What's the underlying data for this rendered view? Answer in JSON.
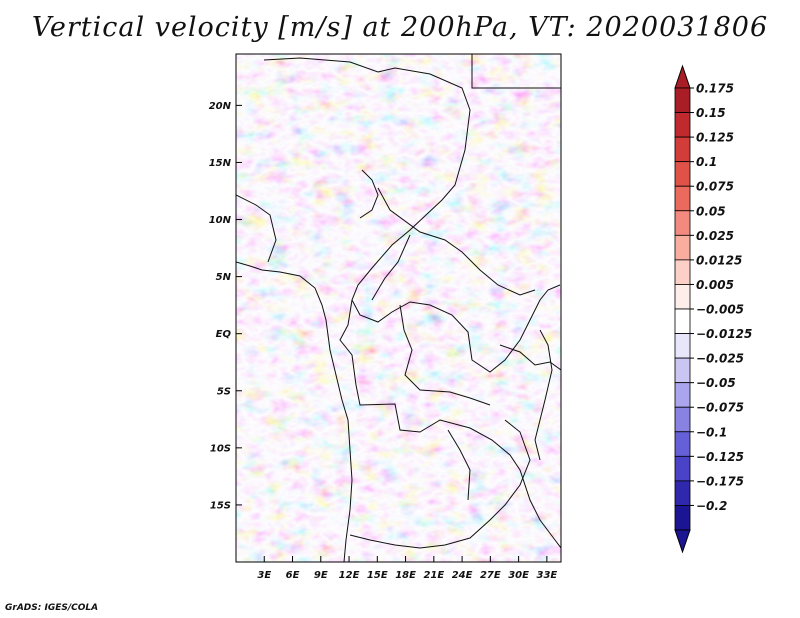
{
  "title": "Vertical velocity [m/s] at 200hPa, VT: 2020031806",
  "credit": "GrADS: IGES/COLA",
  "lat_labels": [
    "20N",
    "15N",
    "10N",
    "5N",
    "EQ",
    "5S",
    "10S",
    "15S"
  ],
  "lat_values": [
    20,
    15,
    10,
    5,
    0,
    -5,
    -10,
    -15
  ],
  "lon_labels": [
    "3E",
    "6E",
    "9E",
    "12E",
    "15E",
    "18E",
    "21E",
    "24E",
    "27E",
    "30E",
    "33E"
  ],
  "lon_values": [
    3,
    6,
    9,
    12,
    15,
    18,
    21,
    24,
    27,
    30,
    33
  ],
  "extent": {
    "lon_min": 0,
    "lon_max": 34.5,
    "lat_min": -20,
    "lat_max": 24.5
  },
  "colorbar": {
    "labels": [
      "0.175",
      "0.15",
      "0.125",
      "0.1",
      "0.075",
      "0.05",
      "0.025",
      "0.0125",
      "0.005",
      "−0.005",
      "−0.0125",
      "−0.025",
      "−0.05",
      "−0.075",
      "−0.1",
      "−0.125",
      "−0.175",
      "−0.2"
    ],
    "colors": [
      "#a81d26",
      "#c02a2f",
      "#d23d39",
      "#e05248",
      "#eb6a5e",
      "#f38a80",
      "#f9ad9f",
      "#fcd0c6",
      "#fdeee9",
      "#ffffff",
      "#e8e6fa",
      "#c9c6f4",
      "#aaa5ed",
      "#8882e3",
      "#6660d8",
      "#4a43c8",
      "#2f28ad",
      "#1c1593"
    ]
  }
}
